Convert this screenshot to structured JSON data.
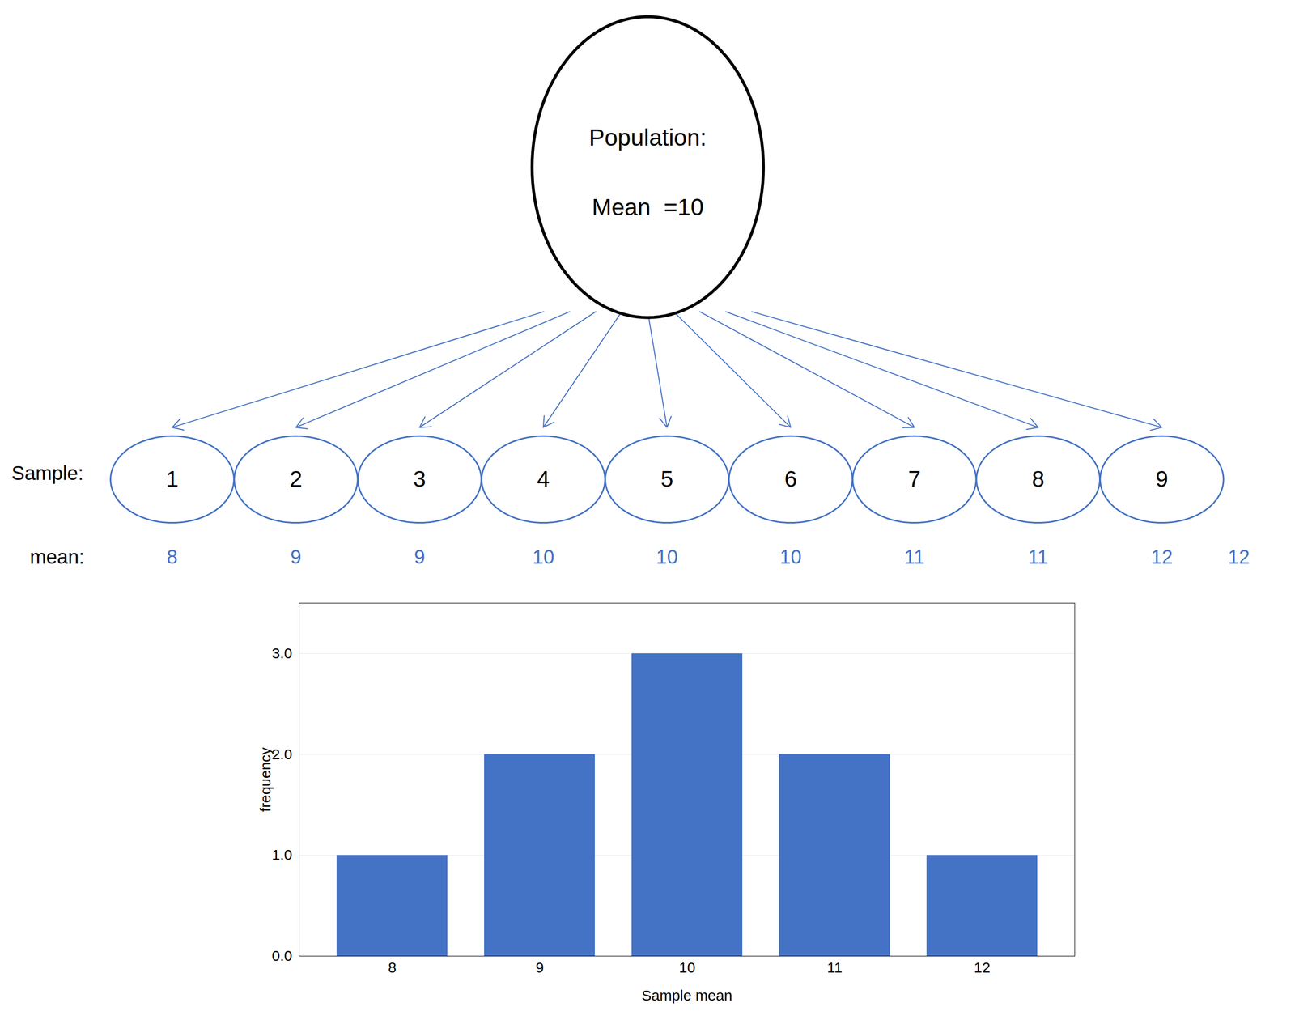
{
  "chart_data": {
    "type": "bar",
    "categories": [
      8,
      9,
      10,
      11,
      12
    ],
    "values": [
      1,
      2,
      3,
      2,
      1
    ],
    "color": "#4472C4",
    "xlabel": "Sample mean",
    "ylabel": "frequency",
    "ylim": [
      0,
      3.5
    ],
    "yticks": [
      0,
      1,
      2,
      3
    ],
    "grid": true,
    "annotations": [
      "Population:",
      "Mean  =10",
      "Sample:",
      " mean:",
      "12"
    ],
    "samples": [
      1,
      2,
      3,
      4,
      5,
      6,
      7,
      8,
      9
    ],
    "sample_means": [
      8,
      9,
      9,
      10,
      10,
      10,
      11,
      11,
      12
    ]
  }
}
